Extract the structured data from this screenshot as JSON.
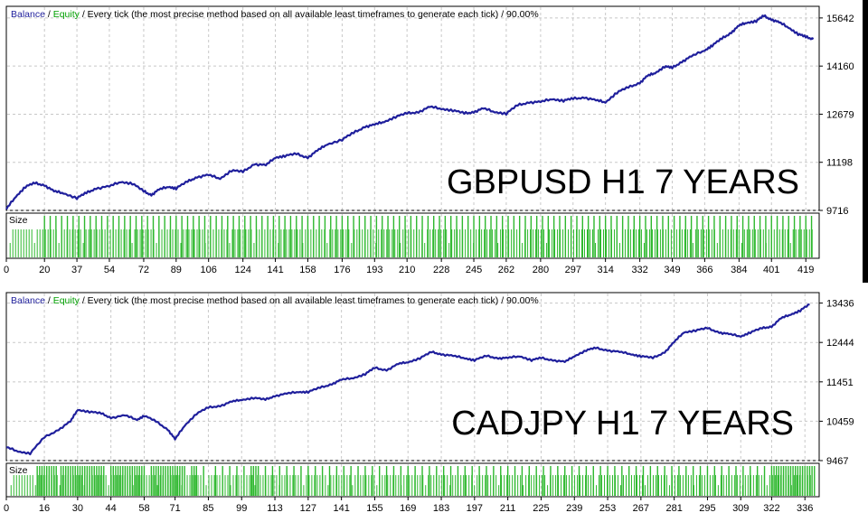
{
  "chart_data": [
    {
      "type": "line",
      "header": {
        "balance": "Balance",
        "equity": "Equity",
        "description": "Every tick (the most precise method based on all available least timeframes to generate each tick)",
        "quality": "90.00%"
      },
      "overlay_title": "GBPUSD H1 7 YEARS",
      "ylim": [
        9716,
        16000
      ],
      "y_ticks": [
        "15642",
        "14160",
        "12679",
        "11198",
        "9716"
      ],
      "y_tick_values": [
        15642,
        14160,
        12679,
        11198,
        9716
      ],
      "xlim": [
        0,
        426
      ],
      "x_ticks": [
        "0",
        "20",
        "37",
        "54",
        "72",
        "89",
        "106",
        "124",
        "141",
        "158",
        "176",
        "193",
        "210",
        "228",
        "245",
        "262",
        "280",
        "297",
        "314",
        "332",
        "349",
        "366",
        "384",
        "401",
        "419"
      ],
      "x_tick_values": [
        0,
        20,
        37,
        54,
        72,
        89,
        106,
        124,
        141,
        158,
        176,
        193,
        210,
        228,
        245,
        262,
        280,
        297,
        314,
        332,
        349,
        366,
        384,
        401,
        419
      ],
      "size_label": "Size",
      "grid": true,
      "colors": {
        "balance": "#1f1f9c",
        "equity": "#00a000",
        "size_bar": "#2eb82e",
        "grid": "#c8c8c8"
      },
      "series": [
        {
          "name": "Balance",
          "x": [
            0,
            5,
            10,
            15,
            20,
            25,
            30,
            37,
            42,
            47,
            54,
            60,
            66,
            72,
            76,
            80,
            85,
            89,
            95,
            100,
            106,
            112,
            118,
            124,
            130,
            136,
            141,
            146,
            152,
            158,
            163,
            168,
            176,
            182,
            188,
            193,
            198,
            204,
            210,
            216,
            222,
            228,
            234,
            240,
            245,
            250,
            256,
            262,
            268,
            274,
            280,
            286,
            292,
            297,
            303,
            309,
            314,
            320,
            326,
            332,
            336,
            340,
            345,
            349,
            354,
            359,
            366,
            370,
            375,
            380,
            384,
            388,
            393,
            397,
            401,
            405,
            410,
            415,
            419,
            423
          ],
          "y": [
            9750,
            10150,
            10450,
            10550,
            10500,
            10300,
            10250,
            10100,
            10250,
            10400,
            10450,
            10600,
            10550,
            10300,
            10200,
            10350,
            10450,
            10400,
            10600,
            10750,
            10800,
            10700,
            10950,
            10900,
            11150,
            11100,
            11350,
            11400,
            11450,
            11350,
            11550,
            11750,
            11900,
            12100,
            12300,
            12350,
            12450,
            12600,
            12700,
            12750,
            12900,
            12850,
            12800,
            12700,
            12750,
            12850,
            12750,
            12700,
            12950,
            13050,
            13050,
            13150,
            13100,
            13150,
            13200,
            13100,
            13050,
            13350,
            13500,
            13650,
            13850,
            13950,
            14150,
            14100,
            14300,
            14450,
            14650,
            14800,
            15000,
            15200,
            15400,
            15500,
            15550,
            15700,
            15600,
            15500,
            15350,
            15150,
            15050,
            15000
          ]
        }
      ],
      "size_bars": [
        20,
        23,
        26,
        29,
        32,
        35,
        38,
        41,
        44,
        47,
        50,
        53,
        56,
        59,
        62,
        65,
        68,
        71,
        74,
        77,
        80,
        83,
        86,
        89,
        92,
        95,
        98,
        101,
        104,
        107,
        110,
        113,
        116,
        119,
        122,
        125,
        128,
        131,
        134,
        137,
        140,
        143,
        146,
        149,
        152,
        155,
        158,
        161,
        164,
        167,
        170,
        173,
        176,
        179,
        182,
        185,
        188,
        191,
        194,
        197,
        200,
        203,
        206,
        209,
        212,
        215,
        218,
        221,
        224,
        227,
        230,
        233,
        236,
        239,
        242,
        245,
        248,
        251,
        254,
        257,
        260,
        263,
        266,
        269,
        272,
        275,
        278,
        281,
        284,
        287,
        290,
        293,
        296,
        299,
        302,
        305,
        308,
        311,
        314,
        317,
        320,
        323,
        326,
        329,
        332,
        335,
        338,
        341,
        344,
        347,
        350,
        353,
        356,
        359,
        362,
        365,
        368,
        371,
        374,
        377,
        380,
        383,
        386,
        389,
        392,
        395,
        398,
        401,
        404,
        407,
        410,
        413,
        416,
        419,
        422
      ]
    },
    {
      "type": "line",
      "header": {
        "balance": "Balance",
        "equity": "Equity",
        "description": "Every tick (the most precise method based on all available least timeframes to generate each tick)",
        "quality": "90.00%"
      },
      "overlay_title": "CADJPY H1 7 YEARS",
      "ylim": [
        9467,
        13700
      ],
      "y_ticks": [
        "13436",
        "12444",
        "11451",
        "10459",
        "9467"
      ],
      "y_tick_values": [
        13436,
        12444,
        11451,
        10459,
        9467
      ],
      "xlim": [
        0,
        342
      ],
      "x_ticks": [
        "0",
        "16",
        "30",
        "44",
        "58",
        "71",
        "85",
        "99",
        "113",
        "127",
        "141",
        "155",
        "169",
        "183",
        "197",
        "211",
        "225",
        "239",
        "253",
        "267",
        "281",
        "295",
        "309",
        "322",
        "336"
      ],
      "x_tick_values": [
        0,
        16,
        30,
        44,
        58,
        71,
        85,
        99,
        113,
        127,
        141,
        155,
        169,
        183,
        197,
        211,
        225,
        239,
        253,
        267,
        281,
        295,
        309,
        322,
        336
      ],
      "size_label": "Size",
      "grid": true,
      "colors": {
        "balance": "#1f1f9c",
        "equity": "#00a000",
        "size_bar": "#2eb82e",
        "grid": "#c8c8c8"
      },
      "series": [
        {
          "name": "Balance",
          "x": [
            0,
            5,
            10,
            16,
            22,
            27,
            30,
            35,
            40,
            44,
            50,
            55,
            58,
            63,
            68,
            71,
            75,
            80,
            85,
            90,
            95,
            99,
            104,
            109,
            113,
            118,
            123,
            127,
            132,
            137,
            141,
            146,
            151,
            155,
            160,
            165,
            169,
            174,
            179,
            183,
            188,
            193,
            197,
            202,
            207,
            211,
            216,
            221,
            225,
            230,
            235,
            239,
            244,
            248,
            253,
            258,
            263,
            267,
            272,
            277,
            281,
            285,
            290,
            295,
            300,
            304,
            309,
            313,
            318,
            322,
            326,
            330,
            334,
            338
          ],
          "y": [
            9800,
            9700,
            9650,
            10050,
            10250,
            10450,
            10750,
            10700,
            10650,
            10550,
            10600,
            10500,
            10600,
            10450,
            10250,
            10000,
            10350,
            10650,
            10800,
            10850,
            10950,
            11000,
            11050,
            11000,
            11100,
            11150,
            11200,
            11200,
            11300,
            11400,
            11500,
            11550,
            11650,
            11800,
            11750,
            11900,
            11950,
            12050,
            12200,
            12150,
            12100,
            12050,
            12000,
            12100,
            12050,
            12050,
            12100,
            12000,
            12050,
            12000,
            11950,
            12100,
            12250,
            12300,
            12250,
            12200,
            12150,
            12100,
            12050,
            12200,
            12450,
            12700,
            12750,
            12800,
            12700,
            12650,
            12600,
            12700,
            12800,
            12850,
            13050,
            13150,
            13250,
            13400
          ]
        }
      ],
      "size_bars": [
        13,
        14,
        15,
        16,
        17,
        18,
        19,
        20,
        21,
        23,
        24,
        25,
        26,
        27,
        28,
        29,
        30,
        31,
        32,
        33,
        34,
        35,
        36,
        37,
        38,
        39,
        40,
        41,
        44,
        45,
        46,
        47,
        48,
        49,
        50,
        51,
        52,
        53,
        54,
        55,
        56,
        57,
        58,
        61,
        62,
        63,
        64,
        65,
        66,
        67,
        68,
        69,
        70,
        71,
        72,
        73,
        74,
        75,
        78,
        79,
        80,
        83,
        88,
        91,
        94,
        97,
        100,
        103,
        104,
        105,
        106,
        109,
        112,
        115,
        118,
        121,
        124,
        127,
        130,
        133,
        136,
        139,
        142,
        145,
        148,
        151,
        154,
        157,
        160,
        163,
        166,
        169,
        172,
        175,
        178,
        181,
        184,
        187,
        190,
        193,
        196,
        199,
        202,
        205,
        208,
        211,
        214,
        217,
        220,
        223,
        226,
        229,
        232,
        235,
        238,
        241,
        244,
        247,
        250,
        253,
        256,
        259,
        262,
        265,
        268,
        271,
        274,
        277,
        280,
        283,
        286,
        289,
        292,
        295,
        298,
        301,
        304,
        307,
        310,
        313,
        316,
        319,
        322,
        323,
        324,
        325,
        326,
        327,
        328,
        329,
        330,
        331,
        332,
        333,
        334,
        335,
        336,
        337,
        338,
        339,
        340
      ]
    }
  ]
}
